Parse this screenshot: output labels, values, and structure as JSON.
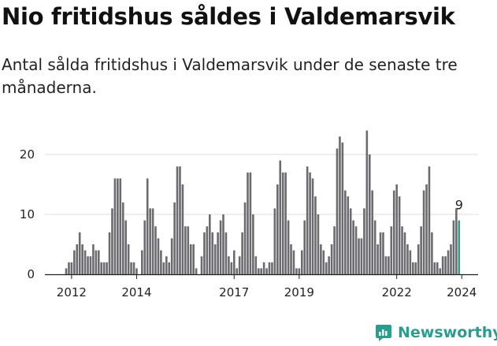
{
  "title": "Nio fritidshus såldes i Valdemarsvik",
  "subtitle": "Antal sålda fritidshus i Valdemarsvik under de senaste tre månaderna.",
  "brand": {
    "name": "Newsworthy",
    "icon": "bar-chart-icon",
    "color": "#2a9d8f"
  },
  "colors": {
    "bar": "#6b6b6f",
    "highlight": "#2a9d8f",
    "grid": "#dcdcdc",
    "axis": "#222222"
  },
  "chart_data": {
    "type": "bar",
    "ylim": [
      0,
      24
    ],
    "yticks": [
      0,
      10,
      20
    ],
    "xticks": [
      {
        "label": "2012",
        "index": 2
      },
      {
        "label": "2014",
        "index": 26
      },
      {
        "label": "2017",
        "index": 62
      },
      {
        "label": "2019",
        "index": 86
      },
      {
        "label": "2022",
        "index": 122
      },
      {
        "label": "2024",
        "index": 146
      }
    ],
    "grid": true,
    "highlight_label": "9",
    "values": [
      1,
      2,
      2,
      4,
      5,
      7,
      5,
      4,
      3,
      3,
      5,
      4,
      4,
      2,
      2,
      2,
      7,
      11,
      16,
      16,
      16,
      12,
      9,
      5,
      2,
      2,
      1,
      0,
      4,
      9,
      16,
      11,
      11,
      8,
      6,
      4,
      2,
      3,
      2,
      6,
      12,
      18,
      18,
      15,
      8,
      8,
      5,
      5,
      1,
      0,
      3,
      7,
      8,
      10,
      7,
      5,
      7,
      9,
      10,
      7,
      3,
      2,
      4,
      1,
      3,
      7,
      12,
      17,
      17,
      10,
      3,
      1,
      1,
      2,
      1,
      2,
      2,
      11,
      15,
      19,
      17,
      17,
      9,
      5,
      4,
      1,
      1,
      4,
      9,
      18,
      17,
      16,
      13,
      10,
      5,
      4,
      2,
      3,
      5,
      8,
      21,
      23,
      22,
      14,
      13,
      11,
      9,
      8,
      6,
      6,
      11,
      24,
      20,
      14,
      9,
      5,
      7,
      7,
      3,
      3,
      8,
      14,
      15,
      13,
      8,
      7,
      5,
      4,
      2,
      2,
      5,
      8,
      14,
      15,
      18,
      7,
      2,
      2,
      1,
      3,
      3,
      4,
      5,
      9,
      11,
      9
    ]
  }
}
